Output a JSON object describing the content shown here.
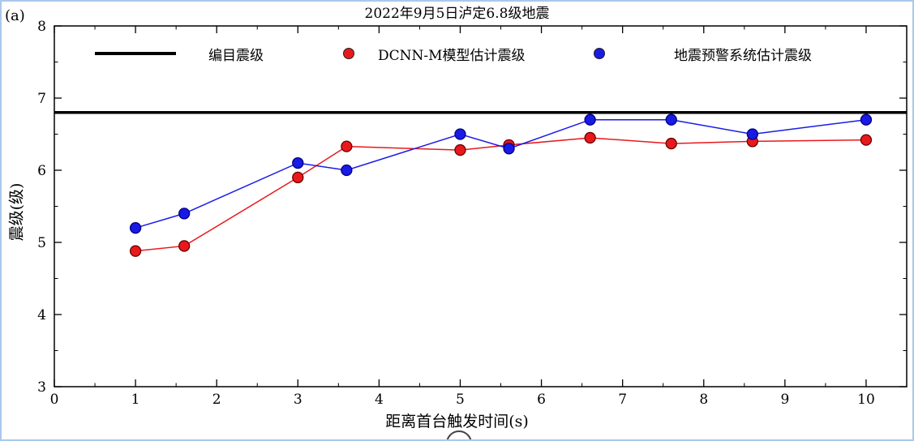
{
  "figure": {
    "panel_label": "(a)"
  },
  "legend": [
    {
      "label": "编目震级",
      "marker": "line",
      "color": "#000000"
    },
    {
      "label": "DCNN-M模型估计震级",
      "marker": "dot",
      "color": "#e8191c"
    },
    {
      "label": "地震预警系统估计震级",
      "marker": "dot",
      "color": "#1a1ae6"
    }
  ],
  "chart_data": {
    "type": "line",
    "title": "2022年9月5日泸定6.8级地震",
    "xlabel": "距离首台触发时间(s)",
    "ylabel": "震级(级)",
    "xlim": [
      0,
      10.5
    ],
    "ylim": [
      3,
      8
    ],
    "xticks": [
      0,
      1,
      2,
      3,
      4,
      5,
      6,
      7,
      8,
      9,
      10
    ],
    "yticks": [
      3,
      4,
      5,
      6,
      7,
      8
    ],
    "minor_tick_step": 0.5,
    "grid": false,
    "legend_position": "top-inside",
    "reference_line": {
      "name": "编目震级",
      "y": 6.8,
      "color": "#000000"
    },
    "x": [
      1,
      1.6,
      3,
      3.6,
      5,
      5.6,
      6.6,
      7.6,
      8.6,
      10
    ],
    "series": [
      {
        "name": "DCNN-M模型估计震级",
        "color": "#e8191c",
        "edge_color": "#6b0000",
        "values": [
          4.88,
          4.95,
          5.9,
          6.33,
          6.28,
          6.35,
          6.45,
          6.37,
          6.4,
          6.42
        ]
      },
      {
        "name": "地震预警系统估计震级",
        "color": "#1a1ae6",
        "edge_color": "#000080",
        "values": [
          5.2,
          5.4,
          6.1,
          6.0,
          6.5,
          6.3,
          6.7,
          6.7,
          6.5,
          6.7
        ]
      }
    ]
  }
}
